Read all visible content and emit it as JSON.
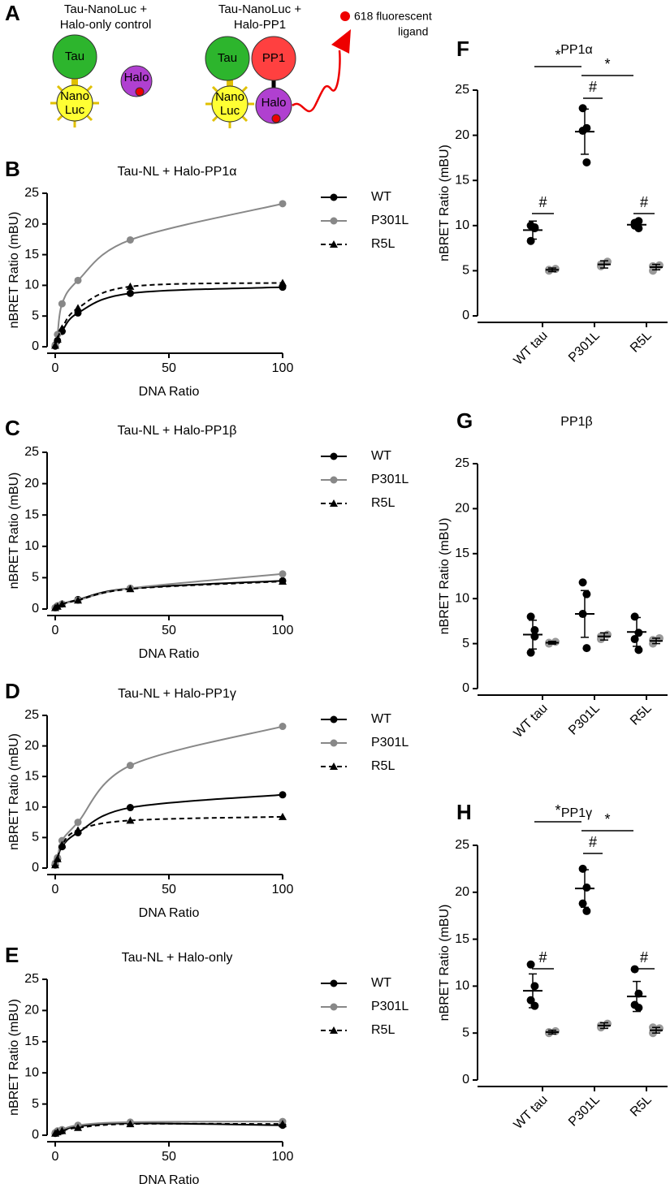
{
  "diagram": {
    "panel": "A",
    "left_title": [
      "Tau-NanoLuc +",
      "Halo-only control"
    ],
    "right_title": [
      "Tau-NanoLuc +",
      "Halo-PP1"
    ],
    "tau": "Tau",
    "nano": [
      "Nano",
      "Luc"
    ],
    "halo": "Halo",
    "pp1": "PP1",
    "ligand": [
      "618 fluorescent",
      "ligand"
    ]
  },
  "chart_data": [
    {
      "type": "line",
      "panel": "B",
      "title": "Tau-NL + Halo-PP1α",
      "x_label": "DNA Ratio",
      "y_label": "nBRET Ratio (mBU)",
      "x": [
        0,
        1,
        3,
        10,
        33,
        100
      ],
      "xlim": [
        0,
        100
      ],
      "xticks": [
        0,
        50,
        100
      ],
      "ylim": [
        0,
        25
      ],
      "yticks": [
        0,
        5,
        10,
        15,
        20,
        25
      ],
      "legend": "right",
      "series": [
        {
          "name": "WT",
          "color": "#000000",
          "marker": "circle",
          "dash": false,
          "values": [
            0.1,
            1,
            2.5,
            5.5,
            8.7,
            9.7
          ]
        },
        {
          "name": "P301L",
          "color": "#888888",
          "marker": "circle",
          "dash": false,
          "values": [
            0.3,
            2,
            7,
            10.8,
            17.4,
            23.3
          ]
        },
        {
          "name": "R5L",
          "color": "#000000",
          "marker": "triangle",
          "dash": true,
          "values": [
            0.2,
            1.2,
            3,
            6.3,
            9.8,
            10.4
          ]
        }
      ]
    },
    {
      "type": "line",
      "panel": "C",
      "title": "Tau-NL + Halo-PP1β",
      "x_label": "DNA Ratio",
      "y_label": "nBRET Ratio (mBU)",
      "x": [
        0,
        1,
        3,
        10,
        33,
        100
      ],
      "xlim": [
        0,
        100
      ],
      "xticks": [
        0,
        50,
        100
      ],
      "ylim": [
        0,
        25
      ],
      "yticks": [
        0,
        5,
        10,
        15,
        20,
        25
      ],
      "legend": "right",
      "series": [
        {
          "name": "WT",
          "color": "#000000",
          "marker": "circle",
          "dash": false,
          "values": [
            0.2,
            0.5,
            0.8,
            1.5,
            3.3,
            4.5
          ]
        },
        {
          "name": "P301L",
          "color": "#888888",
          "marker": "circle",
          "dash": false,
          "values": [
            0.2,
            0.5,
            0.8,
            1.4,
            3.3,
            5.6
          ]
        },
        {
          "name": "R5L",
          "color": "#000000",
          "marker": "triangle",
          "dash": true,
          "values": [
            0.2,
            0.4,
            0.8,
            1.4,
            3.2,
            4.4
          ]
        }
      ]
    },
    {
      "type": "line",
      "panel": "D",
      "title": "Tau-NL + Halo-PP1γ",
      "x_label": "DNA Ratio",
      "y_label": "nBRET Ratio (mBU)",
      "x": [
        0,
        1,
        3,
        10,
        33,
        100
      ],
      "xlim": [
        0,
        100
      ],
      "xticks": [
        0,
        50,
        100
      ],
      "ylim": [
        0,
        25
      ],
      "yticks": [
        0,
        5,
        10,
        15,
        20,
        25
      ],
      "legend": "right",
      "series": [
        {
          "name": "WT",
          "color": "#000000",
          "marker": "circle",
          "dash": false,
          "values": [
            0.5,
            1.5,
            3.5,
            5.8,
            9.9,
            12
          ]
        },
        {
          "name": "P301L",
          "color": "#888888",
          "marker": "circle",
          "dash": false,
          "values": [
            0.8,
            1.7,
            4.5,
            7.5,
            16.8,
            23.2
          ]
        },
        {
          "name": "R5L",
          "color": "#000000",
          "marker": "triangle",
          "dash": true,
          "values": [
            0.5,
            1.5,
            3.8,
            6.2,
            7.8,
            8.4
          ]
        }
      ]
    },
    {
      "type": "line",
      "panel": "E",
      "title": "Tau-NL + Halo-only",
      "x_label": "DNA Ratio",
      "y_label": "nBRET Ratio (mBU)",
      "x": [
        0,
        1,
        3,
        10,
        33,
        100
      ],
      "xlim": [
        0,
        100
      ],
      "xticks": [
        0,
        50,
        100
      ],
      "ylim": [
        0,
        25
      ],
      "yticks": [
        0,
        5,
        10,
        15,
        20,
        25
      ],
      "legend": "right",
      "series": [
        {
          "name": "WT",
          "color": "#000000",
          "marker": "circle",
          "dash": false,
          "values": [
            0.3,
            0.5,
            0.7,
            1.4,
            1.9,
            1.6
          ]
        },
        {
          "name": "P301L",
          "color": "#888888",
          "marker": "circle",
          "dash": false,
          "values": [
            0.4,
            0.7,
            0.9,
            1.6,
            2.1,
            2.2
          ]
        },
        {
          "name": "R5L",
          "color": "#000000",
          "marker": "triangle",
          "dash": true,
          "values": [
            0.3,
            0.5,
            0.7,
            1.2,
            1.8,
            1.8
          ]
        }
      ]
    },
    {
      "type": "dot",
      "panel": "F",
      "title": "PP1α",
      "y_label": "nBRET Ratio (mBU)",
      "categories": [
        "WT tau",
        "P301L",
        "R5L"
      ],
      "ylim": [
        0,
        25
      ],
      "yticks": [
        0,
        5,
        10,
        15,
        20,
        25
      ],
      "annotations": [
        "*",
        "*",
        "#",
        "#",
        "#"
      ],
      "series": [
        {
          "color": "#000000",
          "points": [
            [
              10,
              9.8,
              8.3,
              9.7
            ],
            [
              23,
              20.8,
              20.5,
              17
            ],
            [
              10,
              10.5,
              10.3,
              9.7
            ]
          ],
          "means": [
            9.5,
            20.4,
            10.1
          ],
          "errors": [
            1,
            2.5,
            0.4
          ]
        },
        {
          "color": "#999999",
          "points": [
            [
              5,
              5.2,
              5.1
            ],
            [
              5.5,
              6,
              5.7
            ],
            [
              5,
              5.6,
              5.5
            ]
          ],
          "means": [
            5.1,
            5.7,
            5.4
          ],
          "errors": [
            0.2,
            0.4,
            0.3
          ]
        }
      ]
    },
    {
      "type": "dot",
      "panel": "G",
      "title": "PP1β",
      "y_label": "nBRET Ratio (mBU)",
      "categories": [
        "WT tau",
        "P301L",
        "R5L"
      ],
      "ylim": [
        0,
        25
      ],
      "yticks": [
        0,
        5,
        10,
        15,
        20,
        25
      ],
      "annotations": [],
      "series": [
        {
          "color": "#000000",
          "points": [
            [
              8,
              6.5,
              4,
              5.8
            ],
            [
              11.8,
              10.5,
              8.3,
              4.5
            ],
            [
              8,
              6.2,
              5.5,
              4.3
            ]
          ],
          "means": [
            6,
            8.3,
            6.3
          ],
          "errors": [
            1.6,
            2.6,
            1.6
          ]
        },
        {
          "color": "#999999",
          "points": [
            [
              5.1,
              5.2,
              5
            ],
            [
              5.5,
              6,
              5.8
            ],
            [
              5,
              5.6,
              5.4
            ]
          ],
          "means": [
            5.1,
            5.8,
            5.3
          ],
          "errors": [
            0.15,
            0.4,
            0.3
          ]
        }
      ]
    },
    {
      "type": "dot",
      "panel": "H",
      "title": "PP1γ",
      "y_label": "nBRET Ratio (mBU)",
      "categories": [
        "WT tau",
        "P301L",
        "R5L"
      ],
      "ylim": [
        0,
        25
      ],
      "yticks": [
        0,
        5,
        10,
        15,
        20,
        25
      ],
      "annotations": [
        "*",
        "*",
        "#",
        "#",
        "#"
      ],
      "series": [
        {
          "color": "#000000",
          "points": [
            [
              12.3,
              10,
              8.5,
              7.9
            ],
            [
              22.5,
              20.5,
              18.8,
              18
            ],
            [
              11.8,
              9.2,
              8,
              7.7
            ]
          ],
          "means": [
            9.5,
            20.4,
            8.9
          ],
          "errors": [
            1.8,
            2,
            1.6
          ]
        },
        {
          "color": "#999999",
          "points": [
            [
              5,
              5.2,
              5.1
            ],
            [
              5.6,
              6,
              5.8
            ],
            [
              5,
              5.5,
              5.6
            ]
          ],
          "means": [
            5.1,
            5.8,
            5.3
          ],
          "errors": [
            0.2,
            0.3,
            0.3
          ]
        }
      ]
    }
  ]
}
